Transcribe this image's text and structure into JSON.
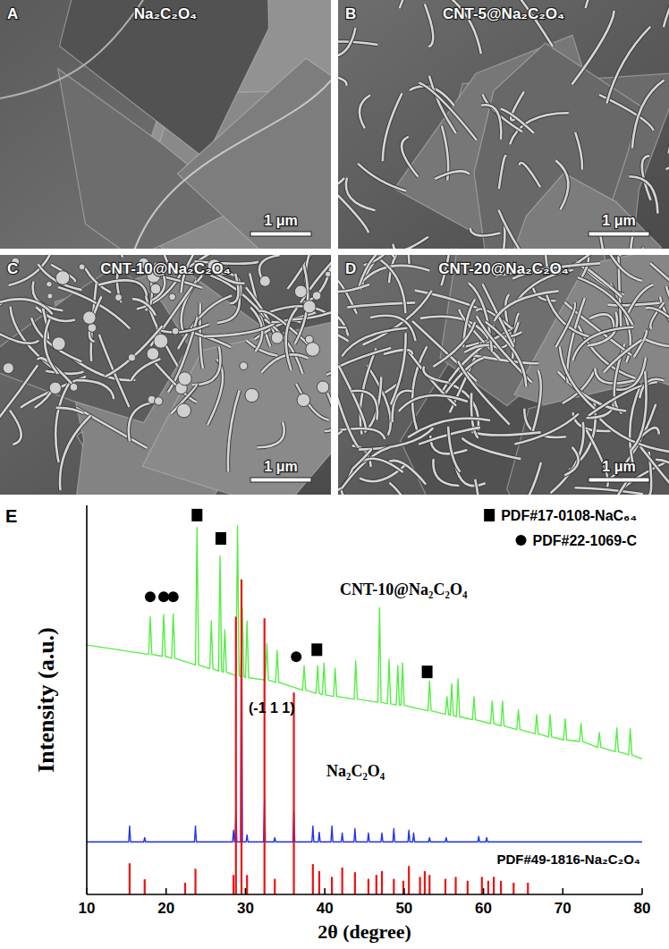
{
  "sem_panels": [
    {
      "letter": "A",
      "title": "Na₂C₂O₄",
      "scale_bar": "1 μm"
    },
    {
      "letter": "B",
      "title": "CNT-5@Na₂C₂O₄",
      "scale_bar": "1 μm"
    },
    {
      "letter": "C",
      "title": "CNT-10@Na₂C₂O₄",
      "scale_bar": "1 μm"
    },
    {
      "letter": "D",
      "title": "CNT-20@Na₂C₂O₄",
      "scale_bar": "1 μm"
    }
  ],
  "chart_panel_letter": "E",
  "chart_data": {
    "type": "line",
    "x_label": "2θ (degree)",
    "y_label": "Intensity (a.u.)",
    "xlim": [
      10,
      80
    ],
    "xticks": [
      10,
      20,
      30,
      40,
      50,
      60,
      70,
      80
    ],
    "ylim": [
      0,
      100
    ],
    "yticks": [],
    "tick_labels": "x",
    "grid": false,
    "legend": "upper right",
    "annotations": [
      "(-1 1 1)"
    ],
    "series": [
      {
        "name": "CNT-10@Na₂C₂O₄",
        "type": "line",
        "color": "#55ee44",
        "x": [
          10,
          17.8,
          18.0,
          18.2,
          19.5,
          19.7,
          19.9,
          20.7,
          20.9,
          21.1,
          23.7,
          23.9,
          24.1,
          25.5,
          25.7,
          25.9,
          26.6,
          26.8,
          27.0,
          27.2,
          27.4,
          27.6,
          28.8,
          29.0,
          29.2,
          29.4,
          29.6,
          29.8,
          30.0,
          30.2,
          30.4,
          32.5,
          32.7,
          32.9,
          33.8,
          34.0,
          34.2,
          37.2,
          37.4,
          37.6,
          38.9,
          39.1,
          39.3,
          39.7,
          39.9,
          40.1,
          41.1,
          41.3,
          41.5,
          43.7,
          43.9,
          44.1,
          46.7,
          46.9,
          47.1,
          47.9,
          48.1,
          48.3,
          49.0,
          49.2,
          49.4,
          49.6,
          49.8,
          50.0,
          53.0,
          53.2,
          53.4,
          55.2,
          55.4,
          55.6,
          55.8,
          56.0,
          56.2,
          56.6,
          56.8,
          57.0,
          58.6,
          58.8,
          59.0,
          60.9,
          61.1,
          61.3,
          62.2,
          62.4,
          62.6,
          64.2,
          64.4,
          64.6,
          66.5,
          66.7,
          66.9,
          68.2,
          68.4,
          68.6,
          70.1,
          70.3,
          70.5,
          72.1,
          72.3,
          72.5,
          74.4,
          74.6,
          74.8,
          76.6,
          76.8,
          77.0,
          78.3,
          78.5,
          78.7,
          80
        ],
        "values": [
          64.1,
          61.7,
          71.4,
          61.7,
          61.2,
          71.9,
          61.2,
          60.7,
          72.1,
          60.7,
          59.0,
          94.3,
          59.0,
          58.0,
          70.3,
          58.0,
          57.4,
          87.0,
          57.4,
          57.1,
          68.0,
          57.1,
          56.3,
          94.7,
          56.3,
          56.0,
          73.7,
          56.0,
          55.7,
          70.3,
          55.7,
          55.1,
          64.5,
          55.1,
          54.5,
          62.7,
          54.5,
          52.5,
          58.8,
          52.5,
          51.7,
          58.8,
          51.7,
          51.3,
          59.5,
          51.3,
          50.9,
          58.1,
          50.9,
          50.2,
          60.0,
          50.2,
          49.4,
          73.7,
          49.4,
          49.0,
          60.4,
          49.0,
          48.7,
          58.8,
          48.7,
          48.6,
          59.5,
          48.6,
          47.2,
          54.9,
          47.2,
          46.3,
          50.8,
          46.3,
          46.0,
          54.2,
          46.0,
          45.7,
          55.4,
          45.7,
          44.9,
          50.8,
          44.9,
          43.9,
          49.7,
          43.9,
          43.3,
          49.7,
          43.3,
          42.4,
          47.4,
          42.4,
          41.3,
          46.2,
          41.3,
          40.5,
          46.2,
          40.5,
          39.7,
          45.1,
          39.7,
          39.3,
          43.9,
          39.3,
          37.8,
          41.6,
          37.8,
          36.7,
          42.8,
          36.7,
          35.9,
          42.6,
          35.9,
          34.8
        ]
      },
      {
        "name": "Na₂C₂O₄",
        "type": "line",
        "color": "#2233ee",
        "x": [
          10,
          15.28,
          15.4,
          15.52,
          17.18,
          17.3,
          17.42,
          23.58,
          23.7,
          23.82,
          28.38,
          28.5,
          28.62,
          28.68,
          28.8,
          28.92,
          29.38,
          29.5,
          29.62,
          30.08,
          30.2,
          30.32,
          32.28,
          32.4,
          32.52,
          33.58,
          33.7,
          33.82,
          35.98,
          36.1,
          36.22,
          38.38,
          38.5,
          38.62,
          39.18,
          39.3,
          39.42,
          40.78,
          40.9,
          41.02,
          42.08,
          42.2,
          42.32,
          43.68,
          43.8,
          43.92,
          45.38,
          45.5,
          45.62,
          47.08,
          47.2,
          47.32,
          48.58,
          48.7,
          48.82,
          50.48,
          50.6,
          50.72,
          51.08,
          51.2,
          51.32,
          53.08,
          53.2,
          53.32,
          55.18,
          55.3,
          55.42,
          59.28,
          59.4,
          59.52,
          60.28,
          60.4,
          60.52,
          80
        ],
        "values": [
          13.5,
          13.5,
          17.6,
          13.5,
          13.5,
          14.6,
          13.5,
          13.5,
          17.6,
          13.5,
          13.5,
          16.5,
          13.5,
          13.5,
          21.5,
          13.5,
          13.5,
          80.1,
          13.5,
          13.5,
          15.3,
          13.5,
          13.5,
          24.5,
          13.5,
          13.5,
          14.6,
          13.5,
          13.5,
          21.5,
          13.5,
          13.5,
          17.6,
          13.5,
          13.5,
          16.0,
          13.5,
          13.5,
          17.6,
          13.5,
          13.5,
          15.8,
          13.5,
          13.5,
          16.9,
          13.5,
          13.5,
          15.8,
          13.5,
          13.5,
          15.8,
          13.5,
          13.5,
          16.9,
          13.5,
          13.5,
          16.5,
          13.5,
          13.5,
          15.8,
          13.5,
          13.5,
          14.6,
          13.5,
          13.5,
          14.6,
          13.5,
          13.5,
          14.9,
          13.5,
          13.5,
          14.6,
          13.5,
          13.5
        ]
      },
      {
        "name": "PDF#49-1816-Na₂C₂O₄",
        "type": "bar",
        "color": "#ee1111",
        "x": [
          15.4,
          17.3,
          22.4,
          23.7,
          28.5,
          28.8,
          29.5,
          30.2,
          32.4,
          33.7,
          36.1,
          38.5,
          39.3,
          40.9,
          42.2,
          43.8,
          45.5,
          46.5,
          47.2,
          48.7,
          49.9,
          50.6,
          52.0,
          52.6,
          53.2,
          55.2,
          56.5,
          58.0,
          59.8,
          60.6,
          61.3,
          62.2,
          63.8,
          65.6
        ],
        "values": [
          8.0,
          3.9,
          3.0,
          6.6,
          5.0,
          71.4,
          81.0,
          5.0,
          71.0,
          4.0,
          51.9,
          7.8,
          6.0,
          4.5,
          6.9,
          5.7,
          4.0,
          5.0,
          6.0,
          4.0,
          3.5,
          7.3,
          4.5,
          6.0,
          5.0,
          4.0,
          4.5,
          3.5,
          4.5,
          3.5,
          4.5,
          3.5,
          3.0,
          3.0
        ]
      },
      {
        "name": "PDF#17-0108-NaC₆₄",
        "type": "scatter",
        "marker": "square",
        "color": "#000000",
        "x": [
          23.9,
          26.9,
          39.0,
          52.9
        ],
        "values": [
          97.5,
          91.5,
          62.9,
          57.2
        ]
      },
      {
        "name": "PDF#22-1069-C",
        "type": "scatter",
        "marker": "circle",
        "color": "#000000",
        "x": [
          18.0,
          19.7,
          20.9,
          36.4
        ],
        "values": [
          76.5,
          76.5,
          76.5,
          61.1
        ]
      }
    ]
  }
}
